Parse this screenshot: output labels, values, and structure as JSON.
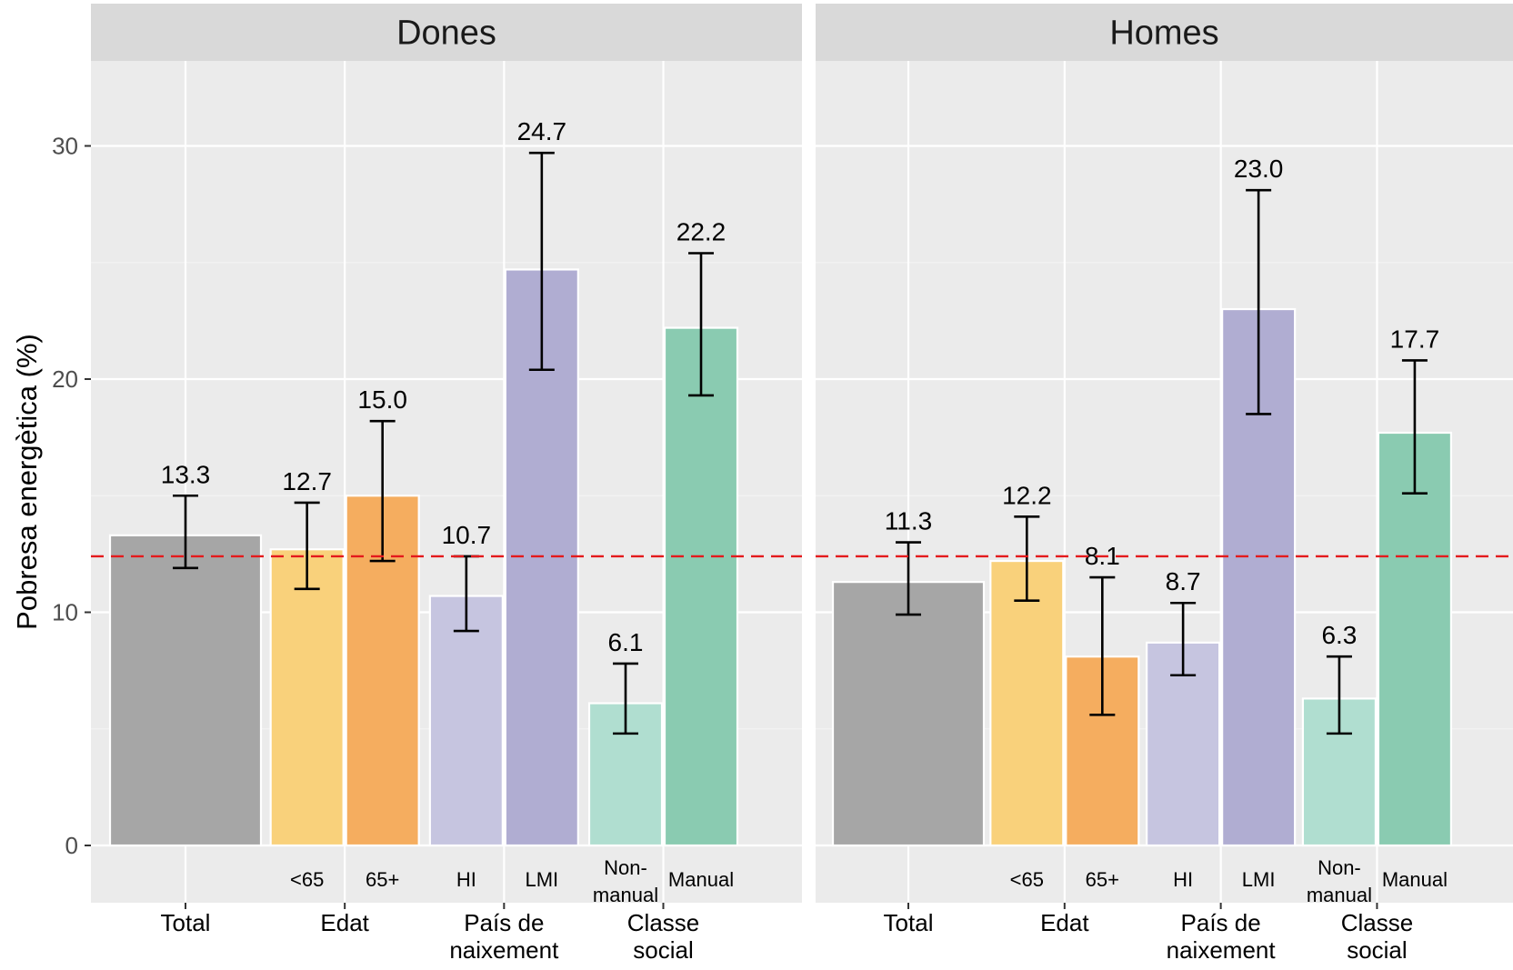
{
  "chart_data": {
    "type": "bar",
    "ylabel": "Pobresa energètica (%)",
    "ylim": [
      0,
      33
    ],
    "y_ticks": [
      0,
      10,
      20,
      30
    ],
    "reference_line": {
      "value": 12.4,
      "color": "#e41a1c",
      "style": "dashed"
    },
    "grid": true,
    "colors": {
      "Total": "#a6a6a6",
      "<65": "#f9d17b",
      "65+": "#f5ad5f",
      "HI": "#c6c5e0",
      "LMI": "#b0add2",
      "Non-manual": "#b0ded0",
      "Manual": "#8acbb1"
    },
    "groups": [
      {
        "label": "Total",
        "bars": [
          "Total"
        ]
      },
      {
        "label": "Edat",
        "bars": [
          "<65",
          "65+"
        ]
      },
      {
        "label": "País de naixement",
        "bars": [
          "HI",
          "LMI"
        ]
      },
      {
        "label": "Classe social",
        "bars": [
          "Non-manual",
          "Manual"
        ]
      }
    ],
    "categories": [
      "Total",
      "<65",
      "65+",
      "HI",
      "LMI",
      "Non-manual",
      "Manual"
    ],
    "category_labels": [
      "",
      "<65",
      "65+",
      "HI",
      "LMI",
      "Non-manual",
      "Manual"
    ],
    "facets": [
      {
        "name": "Dones",
        "values": [
          13.3,
          12.7,
          15.0,
          10.7,
          24.7,
          6.1,
          22.2
        ],
        "value_labels": [
          "13.3",
          "12.7",
          "15.0",
          "10.7",
          "24.7",
          "6.1",
          "22.2"
        ],
        "ci_lower": [
          11.9,
          11.0,
          12.2,
          9.2,
          20.4,
          4.8,
          19.3
        ],
        "ci_upper": [
          15.0,
          14.7,
          18.2,
          12.4,
          29.7,
          7.8,
          25.4
        ]
      },
      {
        "name": "Homes",
        "values": [
          11.3,
          12.2,
          8.1,
          8.7,
          23.0,
          6.3,
          17.7
        ],
        "value_labels": [
          "11.3",
          "12.2",
          "8.1",
          "8.7",
          "23.0",
          "6.3",
          "17.7"
        ],
        "ci_lower": [
          9.9,
          10.5,
          5.6,
          7.3,
          18.5,
          4.8,
          15.1
        ],
        "ci_upper": [
          13.0,
          14.1,
          11.5,
          10.4,
          28.1,
          8.1,
          20.8
        ]
      }
    ]
  }
}
